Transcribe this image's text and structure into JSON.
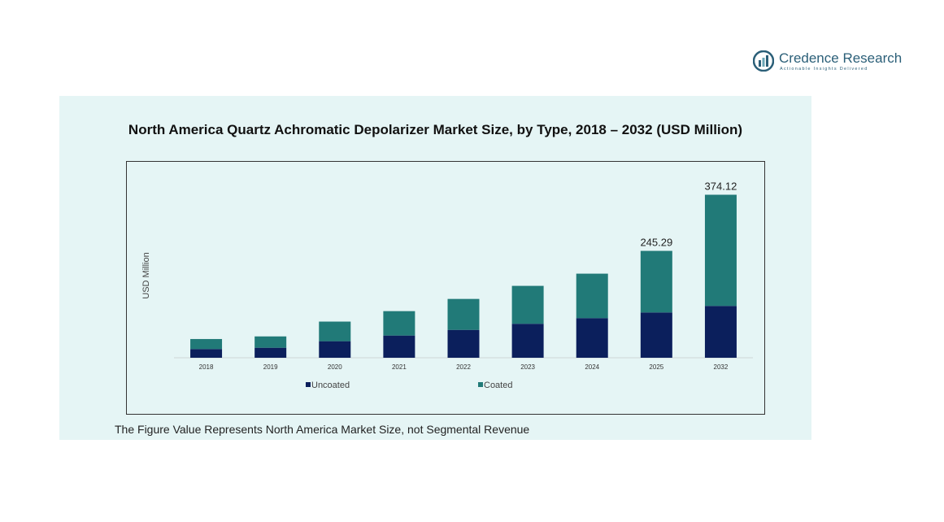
{
  "brand": {
    "name_part1": "Credence",
    "name_part2": "Research",
    "tagline": "Actionable Insights Delivered"
  },
  "chart_title": "North America Quartz Achromatic Depolarizer Market Size, by Type, 2018 – 2032 (USD Million)",
  "footnote": "The Figure Value Represents North America Market Size, not Segmental Revenue",
  "colors": {
    "uncoated": "#0b1f5c",
    "coated": "#217a78",
    "panel_bg": "#e5f5f5"
  },
  "chart_data": {
    "type": "bar",
    "stacked": true,
    "title": "North America Quartz Achromatic Depolarizer Market Size, by Type, 2018 – 2032 (USD Million)",
    "ylabel": "USD Million",
    "xlabel": "",
    "categories": [
      "2018",
      "2019",
      "2020",
      "2021",
      "2022",
      "2023",
      "2024",
      "2025",
      "2032"
    ],
    "series": [
      {
        "name": "Uncoated",
        "values": [
          20,
          23,
          38,
          51,
          64,
          78,
          91,
          104,
          119
        ]
      },
      {
        "name": "Coated",
        "values": [
          23,
          26,
          45,
          56,
          71,
          87,
          102,
          141.29,
          255.12
        ]
      }
    ],
    "totals": [
      43,
      49,
      83,
      107,
      135,
      165,
      193,
      245.29,
      374.12
    ],
    "data_labels": {
      "2025": "245.29",
      "2032": "374.12"
    },
    "ylim": [
      0,
      390
    ],
    "grid": false,
    "legend": "bottom"
  }
}
